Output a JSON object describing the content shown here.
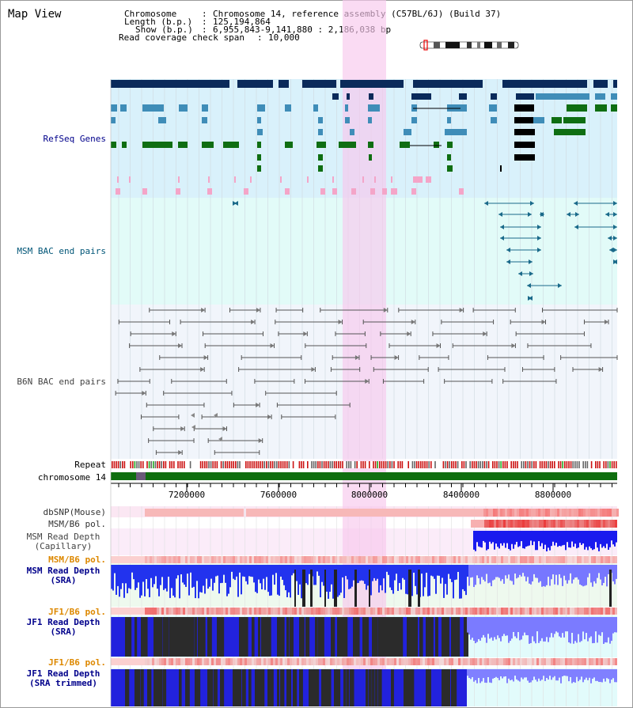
{
  "title": "Map View",
  "header": {
    "chromosome_label": "Chromosome",
    "chromosome_value": "Chromosome 14, reference assembly (C57BL/6J) (Build 37)",
    "length_label": "Length (b.p.)",
    "length_value": "125,194,864",
    "show_label": "Show (b.p.)",
    "show_value": "6,955,843-9,141,880 : 2,186,038 bp",
    "coverage_label": "Read coverage check span",
    "coverage_value": "10,000"
  },
  "tracks": {
    "refseq": "RefSeq Genes",
    "msm_bac": "MSM BAC end pairs",
    "b6n_bac": "B6N BAC end pairs",
    "repeat": "Repeat",
    "chromosome": "chromosome 14",
    "dbsnp": "dbSNP(Mouse)",
    "msm_b6_pol": "MSM/B6 pol.",
    "msm_depth_cap_1": "MSM Read Depth",
    "msm_depth_cap_2": "(Capillary)",
    "msm_b6_pol2": "MSM/B6 pol.",
    "msm_depth_sra_1": "MSM Read Depth",
    "msm_depth_sra_2": "(SRA)",
    "jf1_b6_pol": "JF1/B6 pol.",
    "jf1_depth_sra_1": "JF1 Read Depth",
    "jf1_depth_sra_2": "(SRA)",
    "jf1_b6_pol2": "JF1/B6 pol.",
    "jf1_depth_trim_1": "JF1 Read Depth",
    "jf1_depth_trim_2": "(SRA trimmed)"
  },
  "axis": {
    "ticks": [
      "7200000",
      "7600000",
      "8000000",
      "8400000",
      "8800000"
    ]
  },
  "colors": {
    "refseq_bg": "#d9f1fb",
    "msm_bg": "#e2fbf8",
    "b6n_bg": "#f1f5fb",
    "highlight": "#f8c8ec",
    "gene_dark": "#0a2a5a",
    "gene_mid": "#3f8db8",
    "gene_green": "#0f6e12",
    "msm_line": "#1a6a8a",
    "b6n_line": "#555555",
    "chrom_green": "#0f6e0f",
    "label_navy": "#00008b",
    "label_teal": "#005577",
    "label_orange": "#dd8800"
  }
}
